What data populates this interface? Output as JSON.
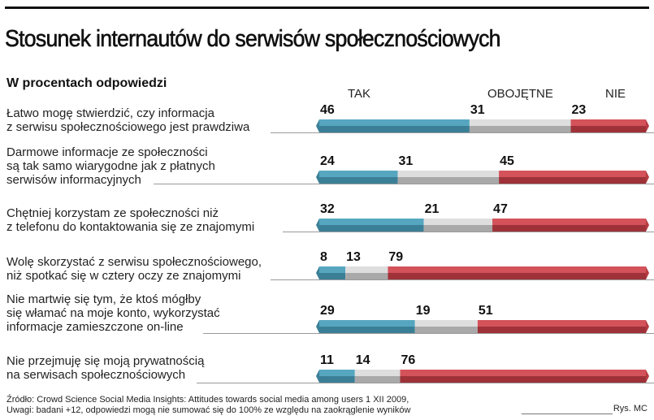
{
  "header": {
    "title": "Stosunek internautów do serwisów społecznościowych",
    "subtitle": "W procentach odpowiedzi"
  },
  "chart_data": {
    "type": "bar",
    "stacked": true,
    "orientation": "horizontal",
    "title": "Stosunek internautów do serwisów społecznościowych",
    "subtitle": "W procentach odpowiedzi",
    "legend": [
      "TAK",
      "OBOJĘTNE",
      "NIE"
    ],
    "legend_placement": "top",
    "colors": {
      "TAK": "#4a98b3",
      "OBOJĘTNE": "#c9c9c9",
      "NIE": "#c9434a"
    },
    "categories": [
      [
        "Łatwo mogę stwierdzić, czy informacja",
        "z serwisu społecznościowego jest prawdziwa"
      ],
      [
        "Darmowe informacje ze społeczności",
        "są tak samo wiarygodne jak z płatnych",
        "serwisów informacyjnych"
      ],
      [
        "Chętniej korzystam ze społeczności niż",
        "z telefonu do kontaktowania się ze znajomymi"
      ],
      [
        "Wolę skorzystać z serwisu społecznościowego,",
        "niż spotkać się w cztery oczy ze znajomymi"
      ],
      [
        "Nie martwię się tym, że ktoś mógłby",
        "się włamać na moje konto, wykorzystać",
        "informacje zamieszczone on-line"
      ],
      [
        "Nie przejmuję się moją prywatnością",
        "na serwisach społecznościowych"
      ]
    ],
    "series": [
      {
        "name": "TAK",
        "values": [
          46,
          24,
          32,
          8,
          29,
          11
        ]
      },
      {
        "name": "OBOJĘTNE",
        "values": [
          31,
          31,
          21,
          13,
          19,
          14
        ]
      },
      {
        "name": "NIE",
        "values": [
          23,
          45,
          47,
          79,
          51,
          76
        ]
      }
    ],
    "xlim": [
      0,
      100
    ],
    "grid": false
  },
  "footer": {
    "source": "Źródło: Crowd Science Social Media Insights: Attitudes towards social media among users 1 XII 2009,",
    "note": "Uwagi: badani +12, odpowiedzi mogą nie sumować się do 100% ze względu na zaokrąglenie wyników",
    "credit": "Rys. MC"
  }
}
